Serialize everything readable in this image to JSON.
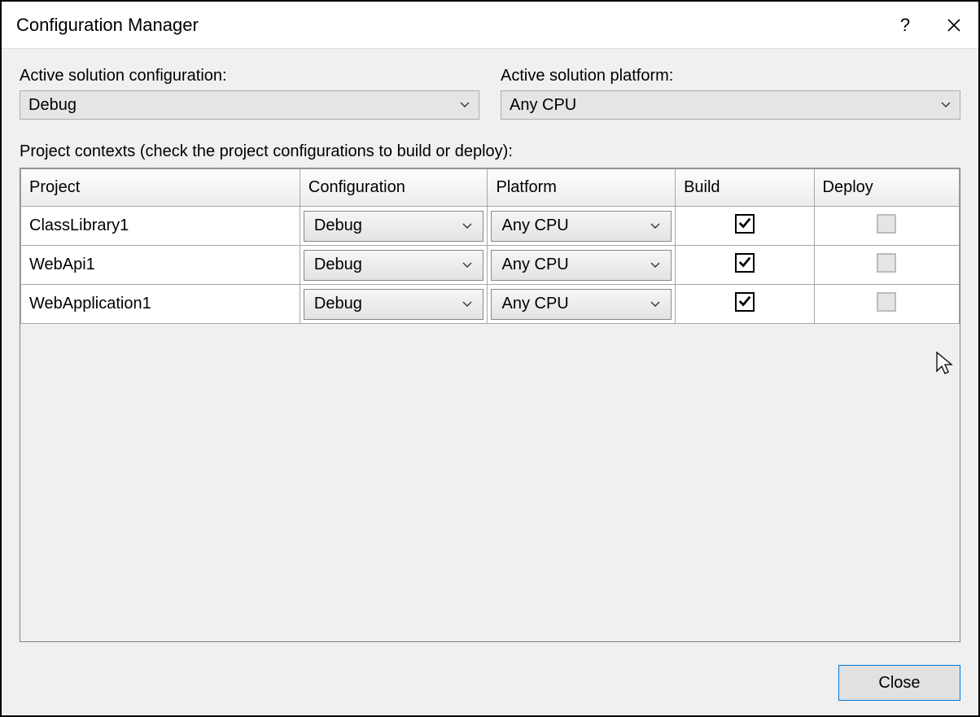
{
  "window": {
    "title": "Configuration Manager"
  },
  "labels": {
    "active_config": "Active solution configuration:",
    "active_platform": "Active solution platform:",
    "project_contexts": "Project contexts (check the project configurations to build or deploy):"
  },
  "selects": {
    "active_config_value": "Debug",
    "active_platform_value": "Any CPU"
  },
  "columns": {
    "project": "Project",
    "configuration": "Configuration",
    "platform": "Platform",
    "build": "Build",
    "deploy": "Deploy"
  },
  "col_widths": {
    "project": "342",
    "configuration": "230",
    "platform": "230",
    "build": "170",
    "deploy": "178"
  },
  "rows": [
    {
      "project": "ClassLibrary1",
      "configuration": "Debug",
      "platform": "Any CPU",
      "build": true,
      "deploy_enabled": false
    },
    {
      "project": "WebApi1",
      "configuration": "Debug",
      "platform": "Any CPU",
      "build": true,
      "deploy_enabled": false
    },
    {
      "project": "WebApplication1",
      "configuration": "Debug",
      "platform": "Any CPU",
      "build": true,
      "deploy_enabled": false
    }
  ],
  "buttons": {
    "close": "Close"
  },
  "colors": {
    "window_border": "#000000",
    "body_bg": "#f0f0f0",
    "grid_border": "#828282",
    "cell_border": "#a7a7a7",
    "accent": "#0078d7"
  }
}
